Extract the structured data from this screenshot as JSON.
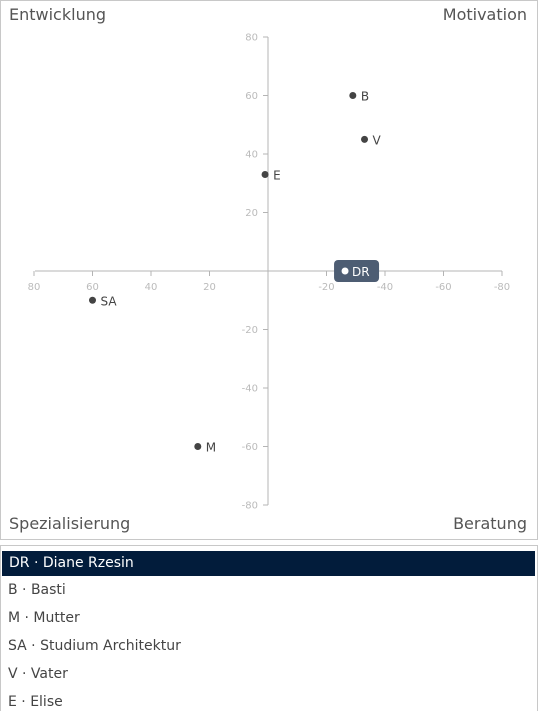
{
  "corners": {
    "top_left": "Entwicklung",
    "top_right": "Motivation",
    "bottom_left": "Spezialisierung",
    "bottom_right": "Beratung"
  },
  "chart_data": {
    "type": "scatter",
    "xlim": [
      80,
      -80
    ],
    "ylim": [
      -80,
      80
    ],
    "x_ticks": [
      "80",
      "60",
      "40",
      "20",
      "-20",
      "-40",
      "-60",
      "-80"
    ],
    "x_tick_values": [
      80,
      60,
      40,
      20,
      -20,
      -40,
      -60,
      -80
    ],
    "y_ticks": [
      "80",
      "60",
      "40",
      "20",
      "-20",
      "-40",
      "-60",
      "-80"
    ],
    "y_tick_values": [
      80,
      60,
      40,
      20,
      -20,
      -40,
      -60,
      -80
    ],
    "points": [
      {
        "label": "B",
        "x": -29,
        "y": 60
      },
      {
        "label": "V",
        "x": -33,
        "y": 45
      },
      {
        "label": "E",
        "x": 1,
        "y": 33
      },
      {
        "label": "DR",
        "x": -26,
        "y": 0,
        "highlight": true
      },
      {
        "label": "SA",
        "x": 60,
        "y": -10
      },
      {
        "label": "M",
        "x": 24,
        "y": -60
      }
    ],
    "grid": false
  },
  "colors": {
    "axis": "#b4b4b4",
    "tick_text": "#bbbbbb",
    "point": "#444444",
    "highlight_bg": "#4d5d73",
    "selected_row": "#021c3b"
  },
  "list": [
    {
      "text": "DR · Diane Rzesin",
      "active": true
    },
    {
      "text": "B · Basti",
      "active": false
    },
    {
      "text": "M · Mutter",
      "active": false
    },
    {
      "text": "SA · Studium Architektur",
      "active": false
    },
    {
      "text": "V · Vater",
      "active": false
    },
    {
      "text": "E · Elise",
      "active": false
    }
  ]
}
